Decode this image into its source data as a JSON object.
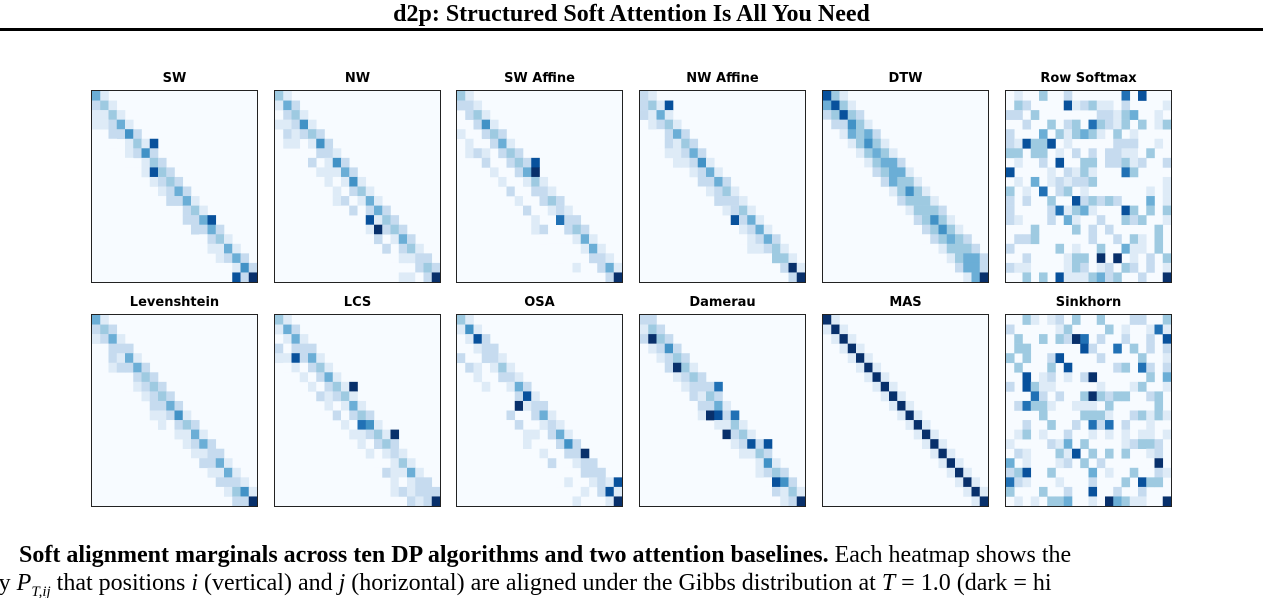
{
  "header": {
    "title": "d2p: Structured Soft Attention Is All You Need"
  },
  "figure": {
    "panels": [
      {
        "title": "SW"
      },
      {
        "title": "NW"
      },
      {
        "title": "SW Affine"
      },
      {
        "title": "NW Affine"
      },
      {
        "title": "DTW"
      },
      {
        "title": "Row Softmax"
      },
      {
        "title": "Levenshtein"
      },
      {
        "title": "LCS"
      },
      {
        "title": "OSA"
      },
      {
        "title": "Damerau"
      },
      {
        "title": "MAS"
      },
      {
        "title": "Sinkhorn"
      }
    ],
    "colormap": [
      "#f7fbff",
      "#deebf7",
      "#c6dbef",
      "#9ecae1",
      "#6baed6",
      "#4292c6",
      "#2171b5",
      "#08519c",
      "#08306b"
    ]
  },
  "caption": {
    "bold": "Soft alignment marginals across ten DP algorithms and two attention baselines.",
    "line1_rest": " Each heatmap shows the",
    "line2_a": "ty ",
    "var_P": "P",
    "var_P_sub": "T,ij",
    "line2_b": " that positions ",
    "var_i": "i",
    "line2_c": " (vertical) and ",
    "var_j": "j",
    "line2_d": " (horizontal) are aligned under the Gibbs distribution at ",
    "var_T": "T",
    "line2_e": " = 1.0 (dark = hi"
  }
}
